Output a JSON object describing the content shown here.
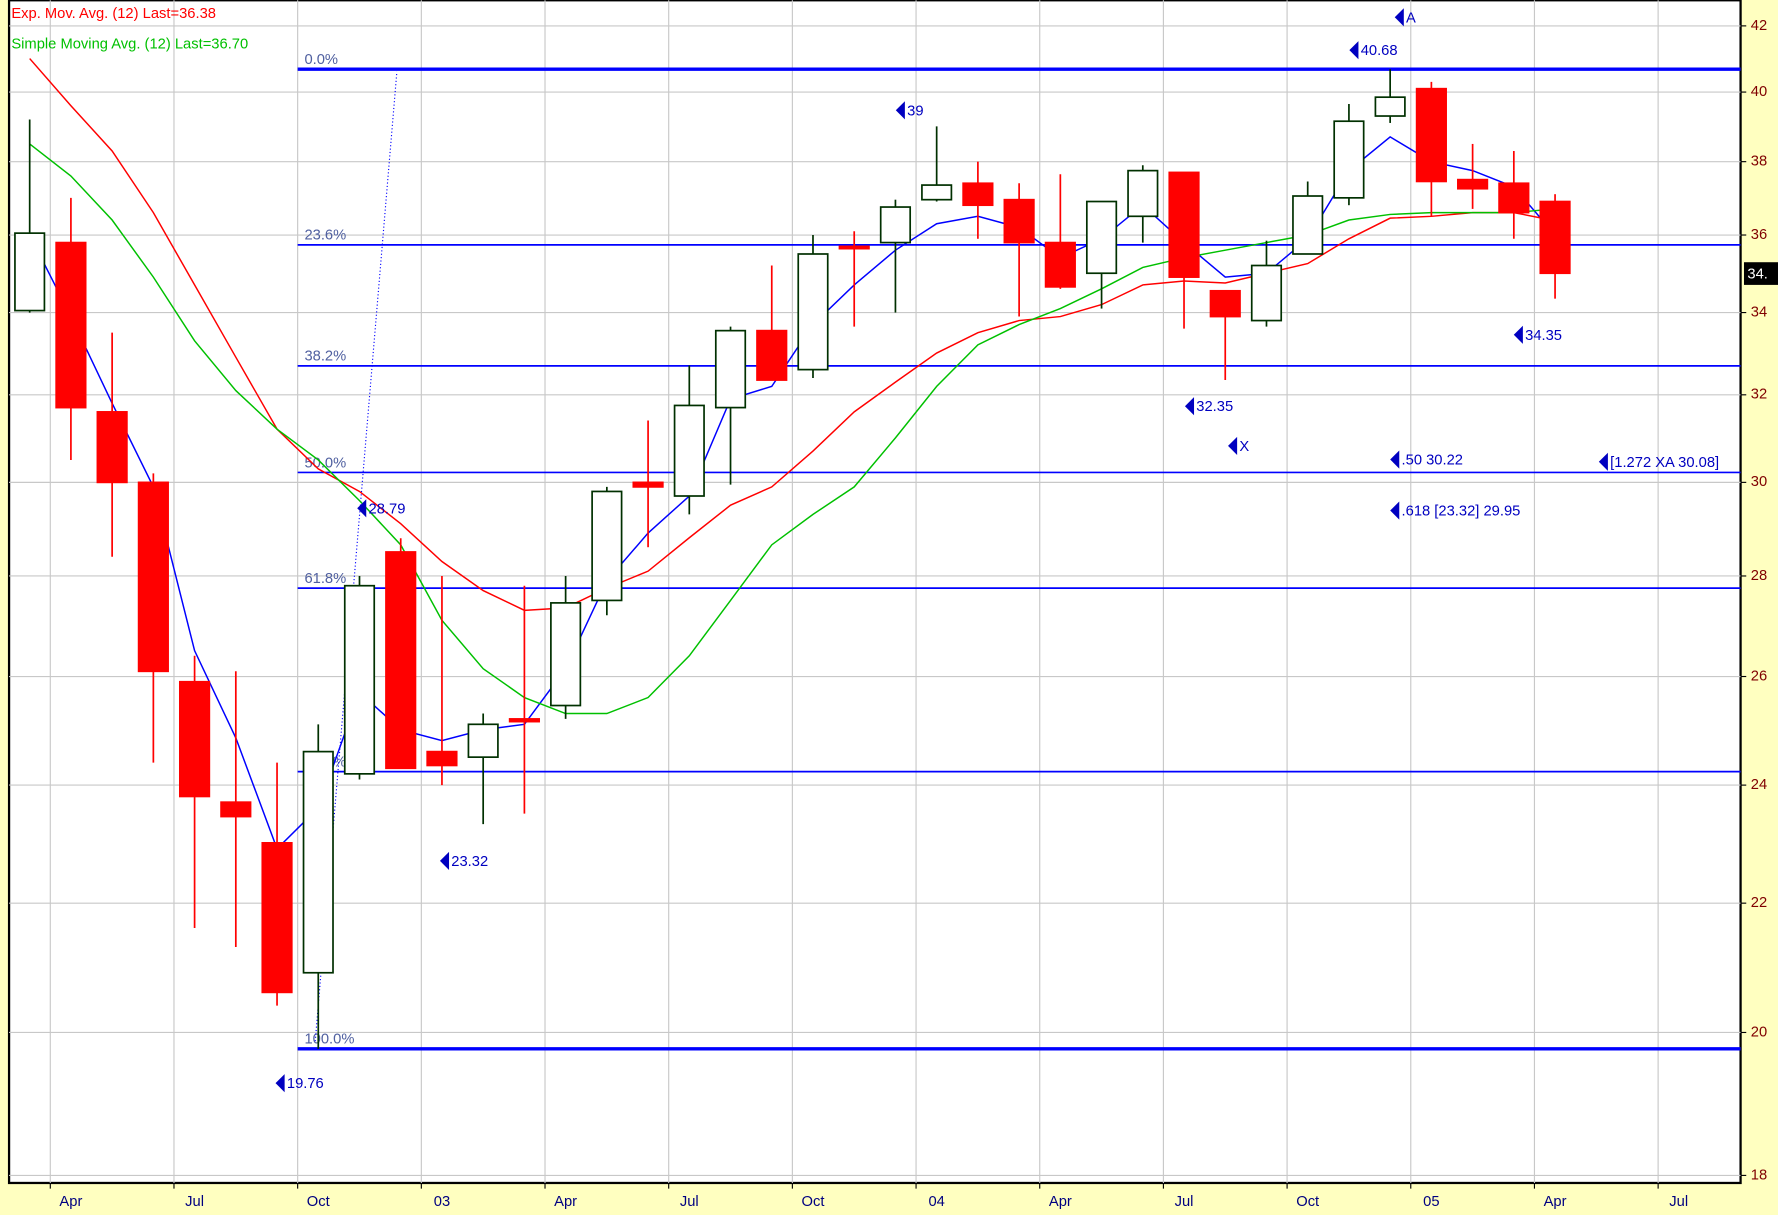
{
  "chart_data": {
    "type": "candlestick",
    "log_scale": true,
    "grid": true,
    "up_color": "#ffffff",
    "down_color": "#ff0000",
    "ylim": [
      17.9,
      42.8
    ],
    "yticks": [
      18,
      20,
      22,
      24,
      26,
      28,
      30,
      32,
      34,
      36,
      38,
      40,
      42
    ],
    "xlim": [
      "2002-03",
      "2005-09"
    ],
    "xticks": [
      {
        "value": "2002-04",
        "label": "Apr"
      },
      {
        "value": "2002-07",
        "label": "Jul"
      },
      {
        "value": "2002-10",
        "label": "Oct"
      },
      {
        "value": "2003-01",
        "label": "03"
      },
      {
        "value": "2003-04",
        "label": "Apr"
      },
      {
        "value": "2003-07",
        "label": "Jul"
      },
      {
        "value": "2003-10",
        "label": "Oct"
      },
      {
        "value": "2004-01",
        "label": "04"
      },
      {
        "value": "2004-04",
        "label": "Apr"
      },
      {
        "value": "2004-07",
        "label": "Jul"
      },
      {
        "value": "2004-10",
        "label": "Oct"
      },
      {
        "value": "2005-01",
        "label": "05"
      },
      {
        "value": "2005-04",
        "label": "Apr"
      },
      {
        "value": "2005-07",
        "label": "Jul"
      }
    ],
    "x": [
      "2002-03",
      "2002-04",
      "2002-05",
      "2002-06",
      "2002-07",
      "2002-08",
      "2002-09",
      "2002-10",
      "2002-11",
      "2002-12",
      "2003-01",
      "2003-02",
      "2003-03",
      "2003-04",
      "2003-05",
      "2003-06",
      "2003-07",
      "2003-08",
      "2003-09",
      "2003-10",
      "2003-11",
      "2003-12",
      "2004-01",
      "2004-02",
      "2004-03",
      "2004-04",
      "2004-05",
      "2004-06",
      "2004-07",
      "2004-08",
      "2004-09",
      "2004-10",
      "2004-11",
      "2004-12",
      "2005-01",
      "2005-02",
      "2005-03",
      "2005-04"
    ],
    "open": [
      34.05,
      35.8,
      31.6,
      30.0,
      25.9,
      23.7,
      23.0,
      20.9,
      24.2,
      28.5,
      24.6,
      24.5,
      25.2,
      25.45,
      27.5,
      30.0,
      29.7,
      31.7,
      33.55,
      32.6,
      35.7,
      35.8,
      36.95,
      37.4,
      36.95,
      35.8,
      35.0,
      36.5,
      37.7,
      34.55,
      33.8,
      35.5,
      37.0,
      39.3,
      40.1,
      37.5,
      37.4,
      36.9
    ],
    "high": [
      39.2,
      37.0,
      33.5,
      30.2,
      26.4,
      26.1,
      24.4,
      25.1,
      28.0,
      28.79,
      28.0,
      25.3,
      27.8,
      28.0,
      29.9,
      31.4,
      32.7,
      33.65,
      35.2,
      36.0,
      36.1,
      36.95,
      39.0,
      38.0,
      37.4,
      37.65,
      36.9,
      37.9,
      37.7,
      34.55,
      35.85,
      37.45,
      39.65,
      40.68,
      40.3,
      38.5,
      38.3,
      37.1
    ],
    "low": [
      34.0,
      30.5,
      28.4,
      24.4,
      21.6,
      21.3,
      20.4,
      19.76,
      24.1,
      24.3,
      24.0,
      23.32,
      23.5,
      25.2,
      27.2,
      28.6,
      29.3,
      29.95,
      32.35,
      32.4,
      33.65,
      34.0,
      36.9,
      35.9,
      33.9,
      34.6,
      34.1,
      35.8,
      33.6,
      32.35,
      33.65,
      35.5,
      36.8,
      39.1,
      36.5,
      36.7,
      35.9,
      34.35
    ],
    "close": [
      36.05,
      31.7,
      30.0,
      26.1,
      23.8,
      23.45,
      20.6,
      24.6,
      27.8,
      24.3,
      24.35,
      25.1,
      25.15,
      27.45,
      29.8,
      29.9,
      31.75,
      33.55,
      32.35,
      35.5,
      35.65,
      36.75,
      37.35,
      36.8,
      35.8,
      34.65,
      36.9,
      37.75,
      34.9,
      33.9,
      35.2,
      37.05,
      39.15,
      39.85,
      37.45,
      37.25,
      36.6,
      35.0
    ],
    "series": [
      {
        "color": "#0000ff",
        "values": [
          36.0,
          33.9,
          31.8,
          29.9,
          26.5,
          24.85,
          22.9,
          23.6,
          25.7,
          25.0,
          24.8,
          25.0,
          25.1,
          26.15,
          27.9,
          28.9,
          29.7,
          31.9,
          32.2,
          33.7,
          34.7,
          35.6,
          36.3,
          36.5,
          36.2,
          35.4,
          35.9,
          36.8,
          35.8,
          34.9,
          35.0,
          35.9,
          37.75,
          38.7,
          38.0,
          37.75,
          37.3,
          36.0
        ]
      },
      {
        "name": "Exp. Mov. Avg. (12) Last=36.38",
        "color": "#ff0000",
        "values": [
          41.0,
          39.6,
          38.3,
          36.6,
          34.7,
          32.9,
          31.2,
          30.3,
          29.8,
          29.1,
          28.3,
          27.7,
          27.3,
          27.35,
          27.75,
          28.1,
          28.8,
          29.5,
          29.9,
          30.7,
          31.6,
          32.3,
          33.0,
          33.5,
          33.8,
          33.9,
          34.2,
          34.7,
          34.8,
          34.75,
          35.0,
          35.25,
          35.9,
          36.45,
          36.5,
          36.6,
          36.6,
          36.38
        ]
      },
      {
        "name": "Simple Moving Avg. (12) Last=36.70",
        "color": "#00c000",
        "values": [
          38.5,
          37.6,
          36.4,
          34.9,
          33.3,
          32.1,
          31.2,
          30.5,
          29.6,
          28.65,
          27.1,
          26.15,
          25.6,
          25.3,
          25.3,
          25.6,
          26.4,
          27.5,
          28.65,
          29.3,
          29.9,
          31.0,
          32.2,
          33.2,
          33.7,
          34.1,
          34.6,
          35.15,
          35.4,
          35.6,
          35.8,
          36.0,
          36.4,
          36.55,
          36.6,
          36.6,
          36.6,
          36.7
        ]
      }
    ],
    "fib_start": "2002-10",
    "fib_levels": [
      {
        "label": "0.0%",
        "value": 40.68
      },
      {
        "label": "23.6%",
        "value": 35.74
      },
      {
        "label": "38.2%",
        "value": 32.69
      },
      {
        "label": "50.0%",
        "value": 30.22
      },
      {
        "label": "61.8%",
        "value": 27.75
      },
      {
        "label": "78.6%",
        "value": 24.24
      },
      {
        "label": "100.0%",
        "value": 19.76
      }
    ],
    "annotations": [
      "A",
      "40.68",
      "39",
      "34.35",
      "32.35",
      "X",
      "28.79",
      "23.32",
      "19.76",
      ".50 30.22",
      ".618 [23.32] 29.95",
      "[1.272 XA 30.08]"
    ],
    "last_price_label": "34."
  }
}
